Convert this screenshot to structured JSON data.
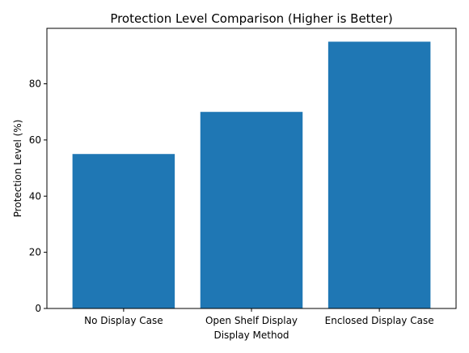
{
  "chart_data": {
    "type": "bar",
    "title": "Protection Level Comparison (Higher is Better)",
    "xlabel": "Display Method",
    "ylabel": "Protection Level (%)",
    "categories": [
      "No Display Case",
      "Open Shelf Display",
      "Enclosed Display Case"
    ],
    "values": [
      55,
      70,
      95
    ],
    "ylim": [
      0,
      99.75
    ],
    "yticks": [
      0,
      20,
      40,
      60,
      80
    ],
    "grid": false,
    "legend": "none",
    "bar_color": "#1f77b4"
  }
}
